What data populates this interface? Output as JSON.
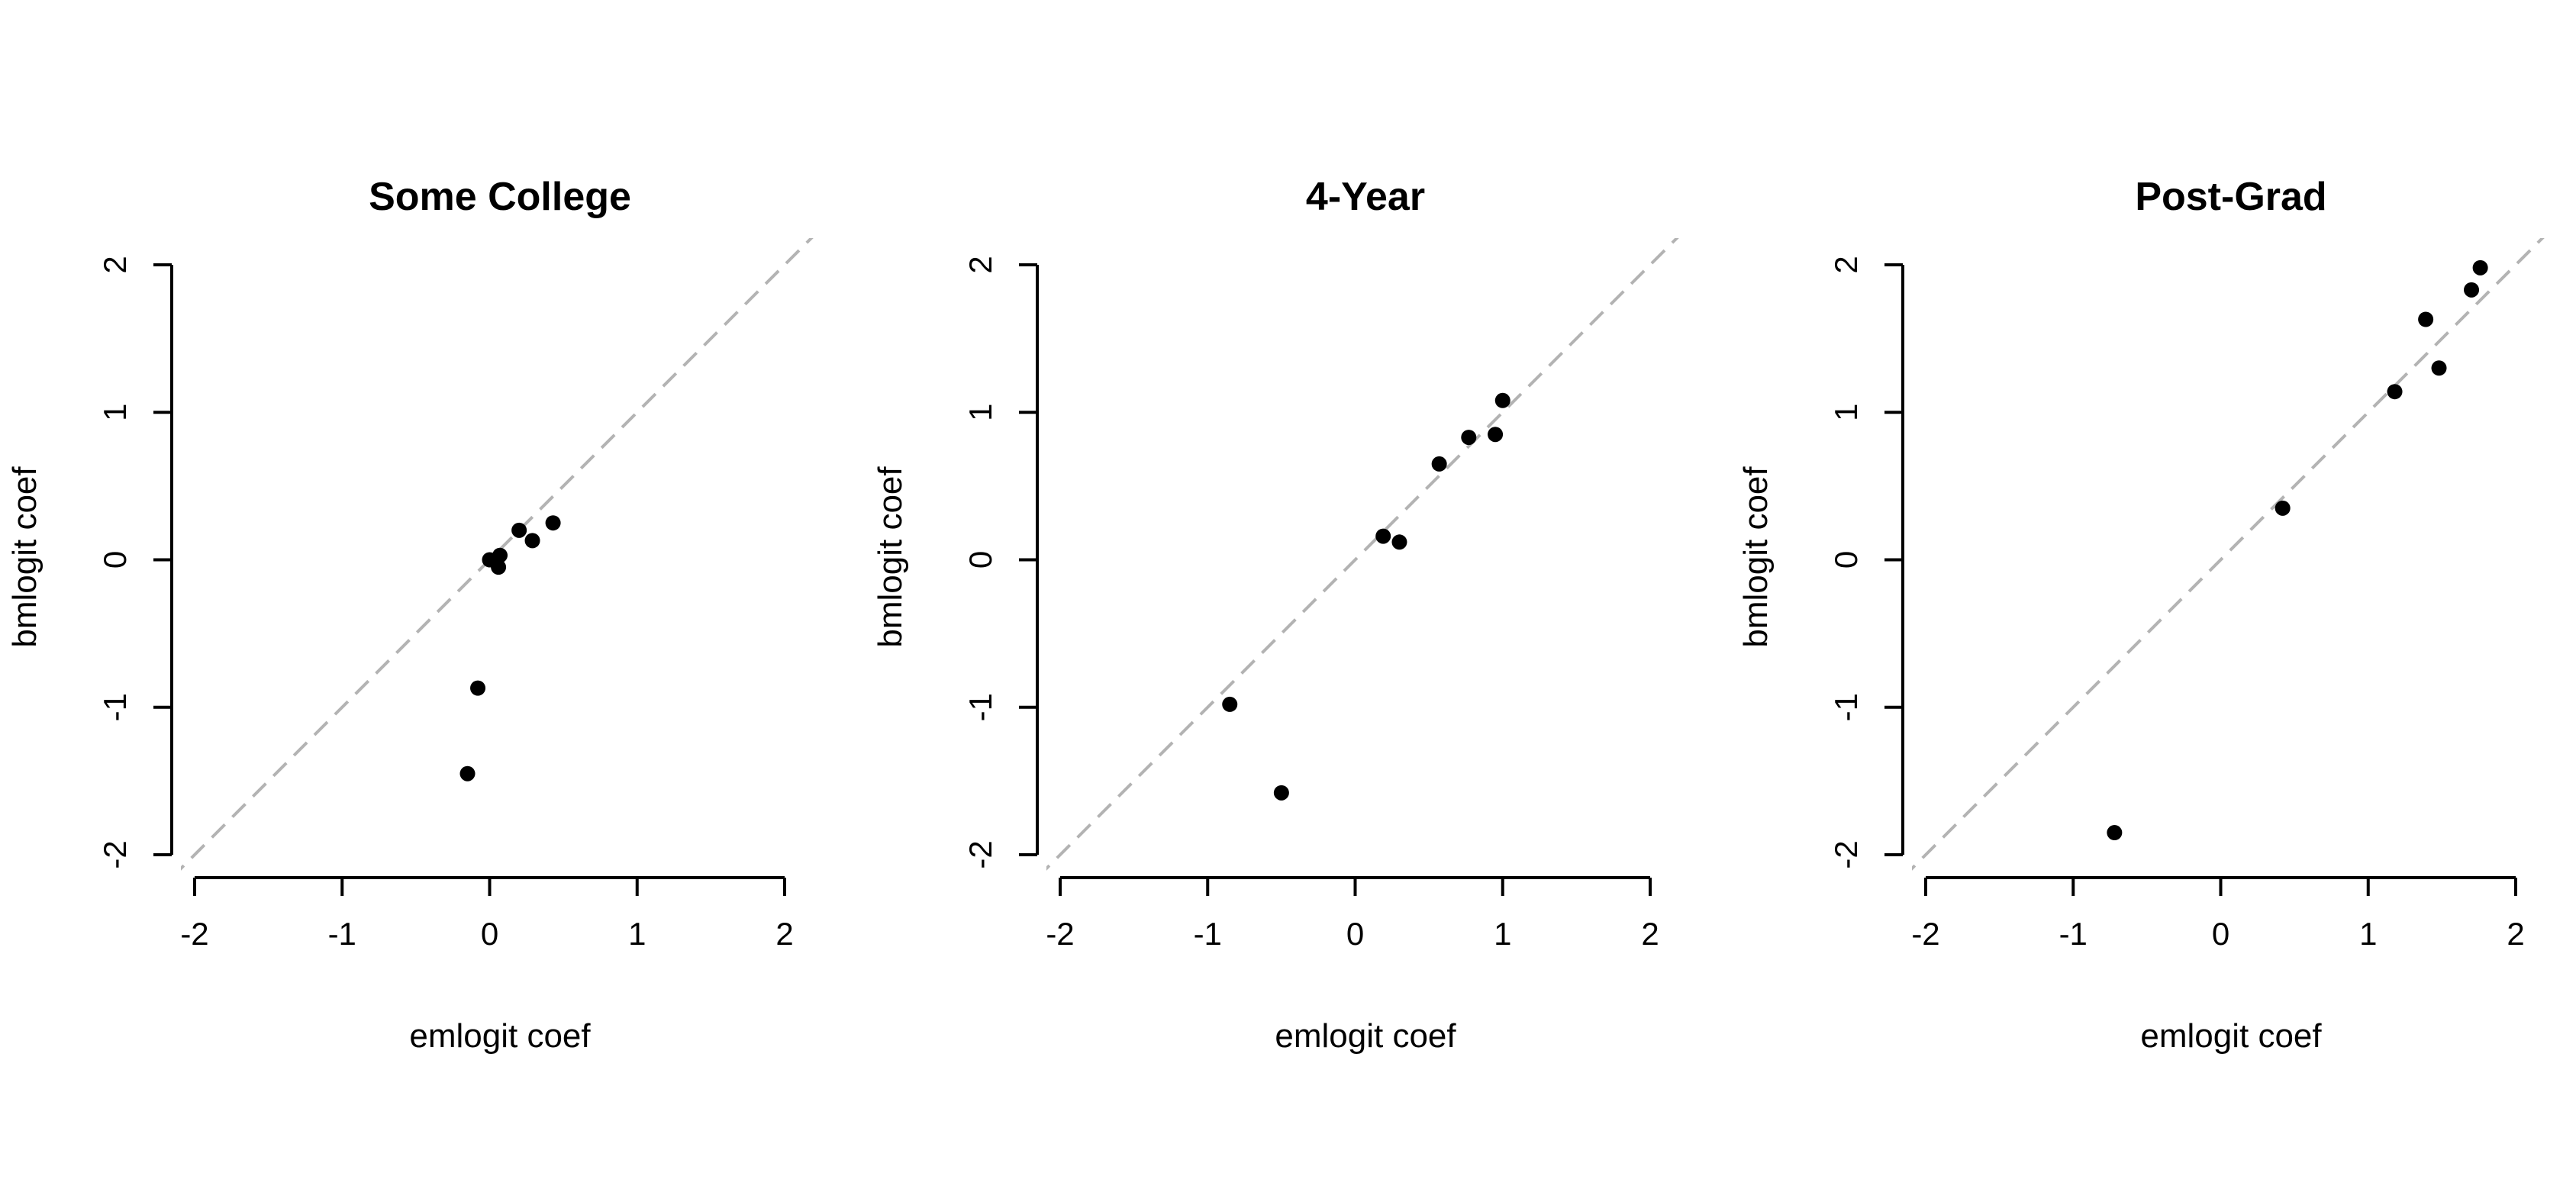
{
  "chart_data": [
    {
      "type": "scatter",
      "title": "Some College",
      "xlabel": "emlogit coef",
      "ylabel": "bmlogit coef",
      "xlim": [
        -2,
        2
      ],
      "ylim": [
        -2,
        2
      ],
      "xticks": [
        "-2",
        "-1",
        "0",
        "1",
        "2"
      ],
      "yticks": [
        "-2",
        "-1",
        "0",
        "1",
        "2"
      ],
      "reference_line": "y = x",
      "points": [
        {
          "x": 0.0,
          "y": 0.0
        },
        {
          "x": 0.07,
          "y": 0.03
        },
        {
          "x": 0.06,
          "y": -0.05
        },
        {
          "x": 0.2,
          "y": 0.2
        },
        {
          "x": 0.29,
          "y": 0.13
        },
        {
          "x": 0.43,
          "y": 0.25
        },
        {
          "x": -0.08,
          "y": -0.87
        },
        {
          "x": -0.15,
          "y": -1.45
        }
      ]
    },
    {
      "type": "scatter",
      "title": "4-Year",
      "xlabel": "emlogit coef",
      "ylabel": "bmlogit coef",
      "xlim": [
        -2,
        2
      ],
      "ylim": [
        -2,
        2
      ],
      "xticks": [
        "-2",
        "-1",
        "0",
        "1",
        "2"
      ],
      "yticks": [
        "-2",
        "-1",
        "0",
        "1",
        "2"
      ],
      "reference_line": "y = x",
      "points": [
        {
          "x": -0.85,
          "y": -0.98
        },
        {
          "x": -0.5,
          "y": -1.58
        },
        {
          "x": 0.19,
          "y": 0.16
        },
        {
          "x": 0.3,
          "y": 0.12
        },
        {
          "x": 0.57,
          "y": 0.65
        },
        {
          "x": 0.77,
          "y": 0.83
        },
        {
          "x": 0.95,
          "y": 0.85
        },
        {
          "x": 1.0,
          "y": 1.08
        }
      ]
    },
    {
      "type": "scatter",
      "title": "Post-Grad",
      "xlabel": "emlogit coef",
      "ylabel": "bmlogit coef",
      "xlim": [
        -2,
        2
      ],
      "ylim": [
        -2,
        2
      ],
      "xticks": [
        "-2",
        "-1",
        "0",
        "1",
        "2"
      ],
      "yticks": [
        "-2",
        "-1",
        "0",
        "1",
        "2"
      ],
      "reference_line": "y = x",
      "points": [
        {
          "x": -0.72,
          "y": -1.85
        },
        {
          "x": 0.42,
          "y": 0.35
        },
        {
          "x": 1.18,
          "y": 1.14
        },
        {
          "x": 1.39,
          "y": 1.63
        },
        {
          "x": 1.48,
          "y": 1.3
        },
        {
          "x": 1.7,
          "y": 1.83
        },
        {
          "x": 1.76,
          "y": 1.98
        }
      ]
    }
  ],
  "colors": {
    "points": "#000000",
    "reference_line": "#b3b3b3",
    "axes": "#000000"
  }
}
